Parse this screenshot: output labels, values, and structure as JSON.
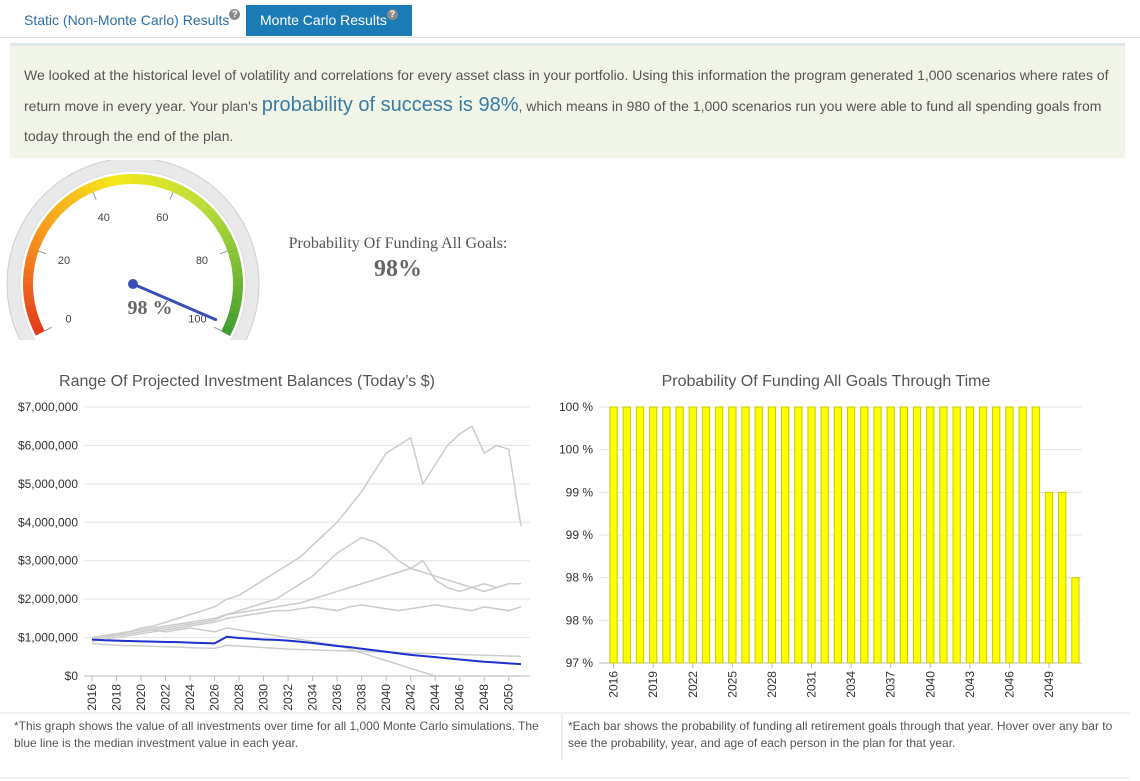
{
  "tabs": {
    "items": [
      "Static (Non-Monte Carlo) Results",
      "Monte Carlo Results"
    ],
    "active": 1,
    "help_icon": "?"
  },
  "intro": {
    "parts": [
      "We looked at the historical level of volatility and correlations for every asset class in your portfolio. Using this information the program generated 1,000 scenarios where rates of return move in every year. Your plan's ",
      "probability of success is 98%",
      ", which means in 980 of the 1,000 scenarios run you were able to fund all spending goals from today through the end of the plan."
    ]
  },
  "summary": {
    "title": "Probability Of Funding All Goals:",
    "value_label": "98%"
  },
  "chart_data": [
    {
      "type": "gauge",
      "value": 98,
      "value_label": "98 %",
      "ylim": [
        0,
        100
      ],
      "yticks": [
        0,
        20,
        40,
        60,
        80,
        100
      ],
      "color": "#3a4fb5"
    },
    {
      "type": "line",
      "title": "Range Of Projected Investment Balances (Today’s $)",
      "x": [
        2016,
        2017,
        2018,
        2019,
        2020,
        2021,
        2022,
        2023,
        2024,
        2025,
        2026,
        2027,
        2028,
        2029,
        2030,
        2031,
        2032,
        2033,
        2034,
        2035,
        2036,
        2037,
        2038,
        2039,
        2040,
        2041,
        2042,
        2043,
        2044,
        2045,
        2046,
        2047,
        2048,
        2049,
        2050,
        2051
      ],
      "xlim": [
        2016,
        2051
      ],
      "xticks": [
        2016,
        2018,
        2020,
        2022,
        2024,
        2026,
        2028,
        2030,
        2032,
        2034,
        2036,
        2038,
        2040,
        2042,
        2044,
        2046,
        2048,
        2050
      ],
      "ylim": [
        0,
        7000000
      ],
      "yticks": [
        {
          "value": 0,
          "label": "$0"
        },
        {
          "value": 1000000,
          "label": "$1,000,000"
        },
        {
          "value": 2000000,
          "label": "$2,000,000"
        },
        {
          "value": 3000000,
          "label": "$3,000,000"
        },
        {
          "value": 4000000,
          "label": "$4,000,000"
        },
        {
          "value": 5000000,
          "label": "$5,000,000"
        },
        {
          "value": 6000000,
          "label": "$6,000,000"
        },
        {
          "value": 7000000,
          "label": "$7,000,000"
        }
      ],
      "grid": true,
      "series": [
        {
          "color": "#cccccc",
          "values": [
            950000,
            1000000,
            1100000,
            1150000,
            1250000,
            1300000,
            1400000,
            1500000,
            1600000,
            1700000,
            1800000,
            2000000,
            2100000,
            2300000,
            2500000,
            2700000,
            2900000,
            3100000,
            3400000,
            3700000,
            4000000,
            4400000,
            4800000,
            5300000,
            5800000,
            6000000,
            6200000,
            5000000,
            5500000,
            6000000,
            6300000,
            6500000,
            5800000,
            6000000,
            5900000,
            3900000
          ]
        },
        {
          "color": "#cccccc",
          "values": [
            1000000,
            1050000,
            1100000,
            1150000,
            1200000,
            1250000,
            1300000,
            1350000,
            1400000,
            1450000,
            1500000,
            1600000,
            1650000,
            1700000,
            1750000,
            1800000,
            1850000,
            1900000,
            2000000,
            2100000,
            2200000,
            2300000,
            2400000,
            2500000,
            2600000,
            2700000,
            2800000,
            3000000,
            2500000,
            2300000,
            2200000,
            2300000,
            2400000,
            2300000,
            2400000,
            2400000
          ]
        },
        {
          "color": "#cccccc",
          "values": [
            900000,
            950000,
            1000000,
            1050000,
            1100000,
            1150000,
            1200000,
            1250000,
            1300000,
            1350000,
            1400000,
            1500000,
            1550000,
            1600000,
            1650000,
            1700000,
            1700000,
            1750000,
            1800000,
            1750000,
            1700000,
            1800000,
            1850000,
            1800000,
            1750000,
            1700000,
            1750000,
            1800000,
            1850000,
            1800000,
            1750000,
            1700000,
            1800000,
            1750000,
            1700000,
            1800000
          ]
        },
        {
          "color": "#cccccc",
          "values": [
            1000000,
            1050000,
            1100000,
            1100000,
            1150000,
            1200000,
            1150000,
            1200000,
            1250000,
            1200000,
            1150000,
            1250000,
            1200000,
            1150000,
            1100000,
            1050000,
            1000000,
            950000,
            900000,
            850000,
            800000,
            700000,
            600000,
            500000,
            400000,
            300000,
            200000,
            100000,
            0,
            0,
            0,
            0,
            0,
            0,
            0,
            0
          ]
        },
        {
          "color": "#cccccc",
          "values": [
            850000,
            820000,
            800000,
            790000,
            780000,
            770000,
            760000,
            750000,
            740000,
            730000,
            720000,
            800000,
            780000,
            760000,
            740000,
            720000,
            700000,
            690000,
            680000,
            670000,
            660000,
            650000,
            640000,
            630000,
            620000,
            610000,
            600000,
            590000,
            580000,
            570000,
            560000,
            550000,
            540000,
            530000,
            520000,
            510000
          ]
        },
        {
          "color": "#cccccc",
          "values": [
            950000,
            1000000,
            1050000,
            1100000,
            1150000,
            1200000,
            1250000,
            1300000,
            1350000,
            1400000,
            1450000,
            1600000,
            1700000,
            1800000,
            1900000,
            2000000,
            2200000,
            2400000,
            2600000,
            2900000,
            3200000,
            3400000,
            3600000,
            3500000,
            3300000,
            3000000,
            2800000,
            2700000,
            2600000,
            2500000,
            2400000,
            2300000,
            2200000,
            2300000,
            2400000,
            2400000
          ]
        },
        {
          "color": "#1f2fd0",
          "values": [
            950000,
            930000,
            920000,
            910000,
            900000,
            895000,
            885000,
            880000,
            870000,
            860000,
            850000,
            1020000,
            990000,
            970000,
            950000,
            940000,
            920000,
            890000,
            860000,
            820000,
            780000,
            750000,
            710000,
            670000,
            630000,
            590000,
            550000,
            520000,
            490000,
            460000,
            430000,
            400000,
            370000,
            350000,
            330000,
            310000
          ]
        }
      ]
    },
    {
      "type": "bar",
      "title": "Probability Of Funding All Goals Through Time",
      "x": [
        2016,
        2017,
        2018,
        2019,
        2020,
        2021,
        2022,
        2023,
        2024,
        2025,
        2026,
        2027,
        2028,
        2029,
        2030,
        2031,
        2032,
        2033,
        2034,
        2035,
        2036,
        2037,
        2038,
        2039,
        2040,
        2041,
        2042,
        2043,
        2044,
        2045,
        2046,
        2047,
        2048,
        2049,
        2050,
        2051
      ],
      "values": [
        100,
        100,
        100,
        100,
        100,
        100,
        100,
        100,
        100,
        100,
        100,
        100,
        100,
        100,
        100,
        100,
        100,
        100,
        100,
        100,
        100,
        100,
        100,
        100,
        100,
        100,
        100,
        100,
        100,
        100,
        100,
        100,
        100,
        99,
        99,
        98
      ],
      "xlim": [
        2015.5,
        2051.5
      ],
      "xticks": [
        2016,
        2019,
        2022,
        2025,
        2028,
        2031,
        2034,
        2037,
        2040,
        2043,
        2046,
        2049
      ],
      "ylim": [
        97,
        100
      ],
      "yticks": [
        {
          "value": 97,
          "label": "97 %"
        },
        {
          "value": 97.5,
          "label": "98 %"
        },
        {
          "value": 98,
          "label": "98 %"
        },
        {
          "value": 98.5,
          "label": "99 %"
        },
        {
          "value": 99,
          "label": "99 %"
        },
        {
          "value": 99.5,
          "label": "100 %"
        },
        {
          "value": 100,
          "label": "100 %"
        }
      ],
      "grid": true,
      "color": "#ffff00"
    }
  ],
  "notes": [
    "*This graph shows the value of all investments over time for all 1,000 Monte Carlo simulations. The blue line is the median investment value in each year.",
    "*Each bar shows the probability of funding all retirement goals through that year. Hover over any bar to see the probability, year, and age of each person in the plan for that year."
  ]
}
